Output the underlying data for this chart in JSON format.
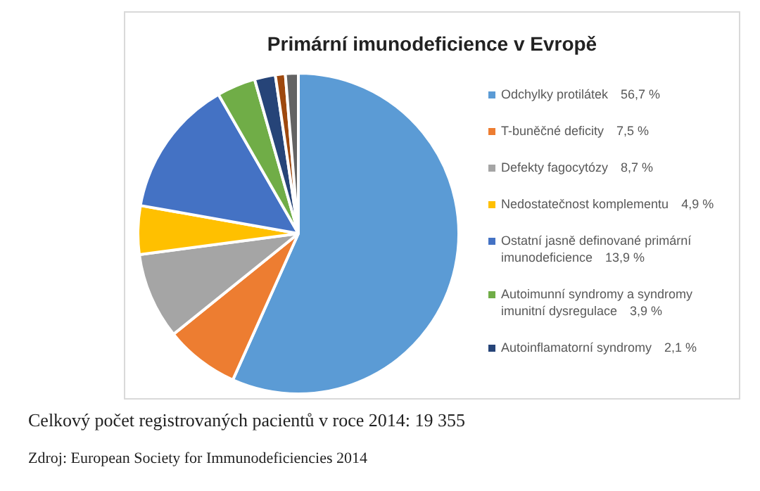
{
  "chart_data": {
    "type": "pie",
    "title": "Primární imunodeficience v Evropě",
    "categories": [
      "Odchylky protilátek",
      "T-buněčné deficity",
      "Defekty fagocytózy",
      "Nedostatečnost komplementu",
      "Ostatní jasně definované primární imunodeficience",
      "Autoimunní syndromy a syndromy imunitní dysregulace",
      "Autoinflamatorní syndromy",
      null,
      null
    ],
    "values": [
      56.7,
      7.5,
      8.7,
      4.9,
      13.9,
      3.9,
      2.1,
      1.0,
      1.3
    ],
    "value_labels": [
      "56,7 %",
      "7,5 %",
      "8,7 %",
      "4,9 %",
      "13,9 %",
      "3,9 %",
      "2,1 %",
      null,
      null
    ],
    "colors": [
      "#5b9bd5",
      "#ed7d31",
      "#a5a5a5",
      "#ffc000",
      "#4472c4",
      "#70ad47",
      "#264478",
      "#9e480e",
      "#636363"
    ],
    "legend": "right",
    "annotations": [
      "Celkový počet registrovaných pacientů v roce 2014: 19 355",
      "Zdroj: European Society for Immunodeficiencies 2014"
    ]
  }
}
